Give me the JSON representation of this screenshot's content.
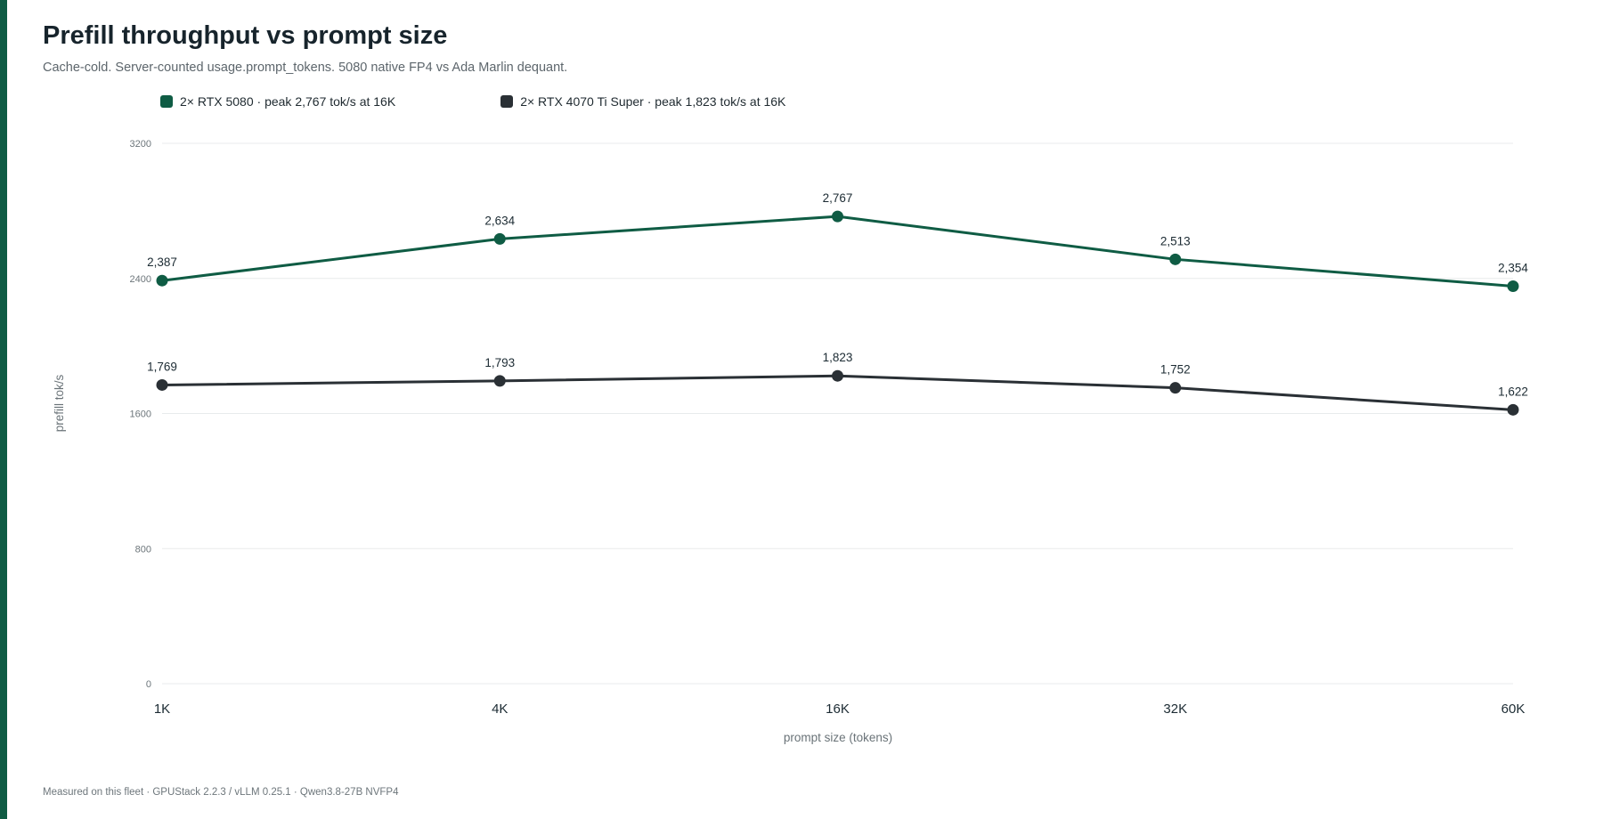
{
  "theme": {
    "accent": "#0f5c44",
    "series_colors": [
      "#0f5c44",
      "#2a3035"
    ]
  },
  "title": "Prefill throughput vs prompt size",
  "subtitle": "Cache-cold. Server-counted usage.prompt_tokens. 5080 native FP4 vs Ada Marlin dequant.",
  "footer": "Measured on this fleet · GPUStack 2.2.3 / vLLM 0.25.1 · Qwen3.8-27B NVFP4",
  "chart_data": {
    "type": "line",
    "title": "Prefill throughput vs prompt size",
    "xlabel": "prompt size (tokens)",
    "ylabel": "prefill tok/s",
    "categories": [
      "1K",
      "4K",
      "16K",
      "32K",
      "60K"
    ],
    "ylim": [
      0,
      3200
    ],
    "yticks": [
      0,
      800,
      1600,
      2400,
      3200
    ],
    "grid": true,
    "legend_position": "top-left",
    "series": [
      {
        "name": "2× RTX 5080 · peak 2,767 tok/s at 16K",
        "color": "#0f5c44",
        "values": [
          2387,
          2634,
          2767,
          2513,
          2354
        ],
        "labels": [
          "2,387",
          "2,634",
          "2,767",
          "2,513",
          "2,354"
        ]
      },
      {
        "name": "2× RTX 4070 Ti Super · peak 1,823 tok/s at 16K",
        "color": "#2a3035",
        "values": [
          1769,
          1793,
          1823,
          1752,
          1622
        ],
        "labels": [
          "1,769",
          "1,793",
          "1,823",
          "1,752",
          "1,622"
        ]
      }
    ]
  }
}
